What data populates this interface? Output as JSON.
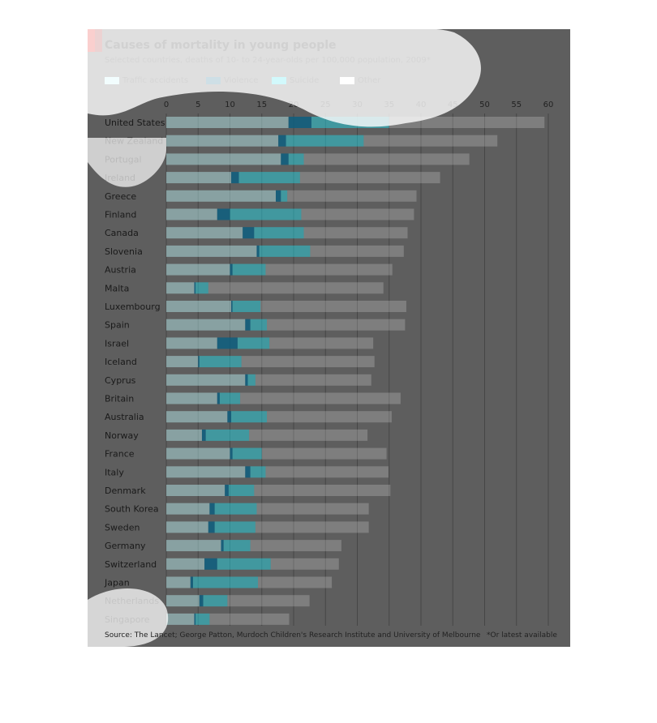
{
  "title": "Causes of mortality in young people",
  "subtitle": "Selected countries, deaths of 10- to 24-year-olds per 100,000 population, 2009*",
  "legend": [
    {
      "label": "Traffic accidents",
      "color": "#bdf3f7"
    },
    {
      "label": "Violence",
      "color": "#0d5f80"
    },
    {
      "label": "Suicide",
      "color": "#1ee0f0"
    },
    {
      "label": "Other",
      "color": "#ffffff"
    }
  ],
  "source": "Source: The Lancet; George Patton, Murdoch Children's Research Institute and University of Melbourne",
  "footnote": "*Or latest available",
  "colors": {
    "background": "#5e5e5e",
    "traffic": "#bdf3f7",
    "violence": "#0d5f80",
    "suicide": "#1ee0f0",
    "other": "#ffffff",
    "accent": "#e3120b"
  },
  "chart_data": {
    "type": "bar",
    "orientation": "horizontal",
    "stacked": true,
    "xlim": [
      0,
      60
    ],
    "xticks": [
      0,
      5,
      10,
      15,
      20,
      25,
      30,
      35,
      40,
      45,
      50,
      55,
      60
    ],
    "categories": [
      "United States",
      "New Zealand",
      "Portugal",
      "Ireland",
      "Greece",
      "Finland",
      "Canada",
      "Slovenia",
      "Austria",
      "Malta",
      "Luxembourg",
      "Spain",
      "Israel",
      "Iceland",
      "Cyprus",
      "Britain",
      "Australia",
      "Norway",
      "France",
      "Italy",
      "Denmark",
      "South Korea",
      "Sweden",
      "Germany",
      "Switzerland",
      "Japan",
      "Netherlands",
      "Singapore"
    ],
    "series": [
      {
        "name": "Traffic accidents",
        "values": [
          19.2,
          17.6,
          18.0,
          10.2,
          17.2,
          8.0,
          12.0,
          14.2,
          10.0,
          4.4,
          10.2,
          12.4,
          8.0,
          5.0,
          12.4,
          8.0,
          9.6,
          5.6,
          10.0,
          12.4,
          9.2,
          6.8,
          6.6,
          8.6,
          6.0,
          3.8,
          5.2,
          4.4
        ]
      },
      {
        "name": "Violence",
        "values": [
          3.6,
          1.2,
          1.2,
          1.2,
          0.8,
          2.0,
          1.8,
          0.4,
          0.4,
          0.2,
          0.2,
          0.8,
          3.2,
          0.2,
          0.4,
          0.4,
          0.6,
          0.6,
          0.4,
          0.8,
          0.6,
          0.8,
          1.0,
          0.4,
          2.0,
          0.4,
          0.6,
          0.2
        ]
      },
      {
        "name": "Suicide",
        "values": [
          12.2,
          12.2,
          2.4,
          9.6,
          1.0,
          11.2,
          7.8,
          8.0,
          5.2,
          2.0,
          4.4,
          2.6,
          5.0,
          6.6,
          1.2,
          3.2,
          5.6,
          6.8,
          4.6,
          2.4,
          4.0,
          6.6,
          6.4,
          4.2,
          8.4,
          10.2,
          3.8,
          2.2
        ]
      },
      {
        "name": "Other",
        "values": [
          24.4,
          21.0,
          26.0,
          22.0,
          20.3,
          17.7,
          16.3,
          14.7,
          19.9,
          27.5,
          22.9,
          21.7,
          16.3,
          20.9,
          18.2,
          25.2,
          19.6,
          18.6,
          19.6,
          19.3,
          21.4,
          17.6,
          17.8,
          14.3,
          10.7,
          11.6,
          12.9,
          12.5
        ]
      }
    ],
    "totals": [
      59.4,
      52.0,
      47.6,
      43.0,
      39.3,
      38.9,
      37.9,
      37.3,
      35.5,
      34.1,
      37.7,
      37.5,
      32.5,
      32.7,
      32.2,
      36.8,
      35.4,
      31.6,
      34.6,
      34.9,
      35.2,
      31.8,
      31.8,
      27.5,
      27.1,
      26.0,
      22.5,
      19.3
    ]
  }
}
